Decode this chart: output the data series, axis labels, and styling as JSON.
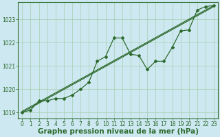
{
  "x": [
    0,
    1,
    2,
    3,
    4,
    5,
    6,
    7,
    8,
    9,
    10,
    11,
    12,
    13,
    14,
    15,
    16,
    17,
    18,
    19,
    20,
    21,
    22,
    23
  ],
  "line_data": [
    1019.0,
    1019.1,
    1019.5,
    1019.5,
    1019.6,
    1019.6,
    1019.75,
    1020.0,
    1020.3,
    1021.2,
    1021.4,
    1022.2,
    1022.2,
    1021.5,
    1021.45,
    1020.85,
    1021.2,
    1021.2,
    1021.8,
    1022.5,
    1022.55,
    1023.4,
    1023.55,
    1023.6
  ],
  "trend1_x": [
    0,
    23
  ],
  "trend1_y": [
    1019.0,
    1023.55
  ],
  "trend2_x": [
    0,
    23
  ],
  "trend2_y": [
    1019.05,
    1023.6
  ],
  "bg_color": "#cde8f0",
  "line_color": "#2d6a2d",
  "grid_color": "#9ec8a0",
  "xlabel": "Graphe pression niveau de la mer (hPa)",
  "xlim": [
    -0.5,
    23.5
  ],
  "ylim": [
    1018.75,
    1023.75
  ],
  "yticks": [
    1019,
    1020,
    1021,
    1022,
    1023
  ],
  "xticks": [
    0,
    1,
    2,
    3,
    4,
    5,
    6,
    7,
    8,
    9,
    10,
    11,
    12,
    13,
    14,
    15,
    16,
    17,
    18,
    19,
    20,
    21,
    22,
    23
  ],
  "tick_fontsize": 5.5,
  "xlabel_fontsize": 7.5,
  "marker": "D",
  "marker_size": 2.0,
  "line_width": 0.9
}
